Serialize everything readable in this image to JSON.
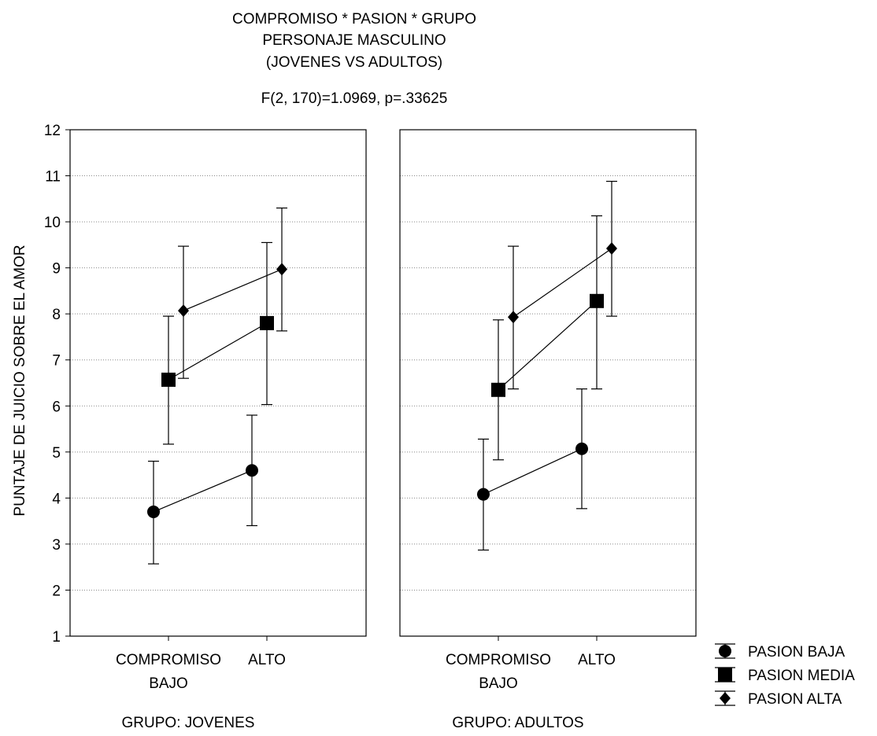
{
  "chart_data": {
    "type": "line",
    "title_lines": [
      "COMPROMISO * PASION * GRUPO",
      "PERSONAJE MASCULINO",
      "(JOVENES VS ADULTOS)",
      "F(2, 170)=1.0969, p=.33625"
    ],
    "ylabel": "PUNTAJE DE JUICIO SOBRE EL AMOR",
    "ylim": [
      1,
      12
    ],
    "yticks": [
      1,
      2,
      3,
      4,
      5,
      6,
      7,
      8,
      9,
      10,
      11,
      12
    ],
    "grid": true,
    "legend_position": "bottom-right",
    "categories": [
      {
        "line1": "COMPROMISO",
        "line2": "BAJO"
      },
      {
        "line1": "ALTO",
        "line2": ""
      }
    ],
    "panels": [
      {
        "label": "GRUPO: JOVENES",
        "series": [
          {
            "name": "PASION BAJA",
            "marker": "circle",
            "values": [
              3.7,
              4.6
            ],
            "err_low": [
              2.57,
              3.4
            ],
            "err_high": [
              4.8,
              5.8
            ]
          },
          {
            "name": "PASION MEDIA",
            "marker": "square",
            "values": [
              6.57,
              7.8
            ],
            "err_low": [
              5.17,
              6.03
            ],
            "err_high": [
              7.95,
              9.55
            ]
          },
          {
            "name": "PASION ALTA",
            "marker": "diamond",
            "values": [
              8.07,
              8.97
            ],
            "err_low": [
              6.6,
              7.63
            ],
            "err_high": [
              9.47,
              10.3
            ]
          }
        ]
      },
      {
        "label": "GRUPO: ADULTOS",
        "series": [
          {
            "name": "PASION BAJA",
            "marker": "circle",
            "values": [
              4.08,
              5.07
            ],
            "err_low": [
              2.87,
              3.77
            ],
            "err_high": [
              5.28,
              6.37
            ]
          },
          {
            "name": "PASION MEDIA",
            "marker": "square",
            "values": [
              6.35,
              8.28
            ],
            "err_low": [
              4.83,
              6.37
            ],
            "err_high": [
              7.87,
              10.13
            ]
          },
          {
            "name": "PASION ALTA",
            "marker": "diamond",
            "values": [
              7.93,
              9.42
            ],
            "err_low": [
              6.37,
              7.95
            ],
            "err_high": [
              9.47,
              10.88
            ]
          }
        ]
      }
    ],
    "legend": [
      "PASION BAJA",
      "PASION MEDIA",
      "PASION ALTA"
    ]
  }
}
